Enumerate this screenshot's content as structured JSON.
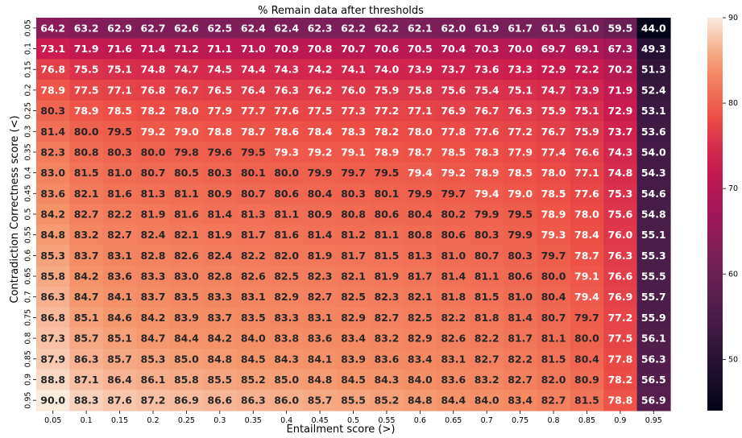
{
  "chart_data": {
    "type": "heatmap",
    "title": "% Remain data after thresholds",
    "xlabel": "Entailment score (>)",
    "ylabel": "Contradiction Correctness score (<)",
    "x_categories": [
      "0.05",
      "0.1",
      "0.15",
      "0.2",
      "0.25",
      "0.3",
      "0.35",
      "0.4",
      "0.45",
      "0.5",
      "0.55",
      "0.6",
      "0.65",
      "0.7",
      "0.75",
      "0.8",
      "0.85",
      "0.9",
      "0.95"
    ],
    "y_categories": [
      "0.05",
      "0.1",
      "0.15",
      "0.2",
      "0.25",
      "0.3",
      "0.35",
      "0.4",
      "0.45",
      "0.5",
      "0.55",
      "0.6",
      "0.65",
      "0.7",
      "0.75",
      "0.8",
      "0.85",
      "0.9",
      "0.95"
    ],
    "values": [
      [
        64.2,
        63.2,
        62.9,
        62.7,
        62.6,
        62.5,
        62.4,
        62.4,
        62.3,
        62.2,
        62.2,
        62.1,
        62.0,
        61.9,
        61.7,
        61.5,
        61.0,
        59.5,
        44.0
      ],
      [
        73.1,
        71.9,
        71.6,
        71.4,
        71.2,
        71.1,
        71.0,
        70.9,
        70.8,
        70.7,
        70.6,
        70.5,
        70.4,
        70.3,
        70.0,
        69.7,
        69.1,
        67.3,
        49.3
      ],
      [
        76.8,
        75.5,
        75.1,
        74.8,
        74.7,
        74.5,
        74.4,
        74.3,
        74.2,
        74.1,
        74.0,
        73.9,
        73.7,
        73.6,
        73.3,
        72.9,
        72.2,
        70.2,
        51.3
      ],
      [
        78.9,
        77.5,
        77.1,
        76.8,
        76.7,
        76.5,
        76.4,
        76.3,
        76.2,
        76.0,
        75.9,
        75.8,
        75.6,
        75.4,
        75.1,
        74.7,
        73.9,
        71.9,
        52.4
      ],
      [
        80.3,
        78.9,
        78.5,
        78.2,
        78.0,
        77.9,
        77.7,
        77.6,
        77.5,
        77.3,
        77.2,
        77.1,
        76.9,
        76.7,
        76.3,
        75.9,
        75.1,
        72.9,
        53.1
      ],
      [
        81.4,
        80.0,
        79.5,
        79.2,
        79.0,
        78.8,
        78.7,
        78.6,
        78.4,
        78.3,
        78.2,
        78.0,
        77.8,
        77.6,
        77.2,
        76.7,
        75.9,
        73.7,
        53.6
      ],
      [
        82.3,
        80.8,
        80.3,
        80.0,
        79.8,
        79.6,
        79.5,
        79.3,
        79.2,
        79.1,
        78.9,
        78.7,
        78.5,
        78.3,
        77.9,
        77.4,
        76.6,
        74.3,
        54.0
      ],
      [
        83.0,
        81.5,
        81.0,
        80.7,
        80.5,
        80.3,
        80.1,
        80.0,
        79.9,
        79.7,
        79.5,
        79.4,
        79.2,
        78.9,
        78.5,
        78.0,
        77.1,
        74.8,
        54.3
      ],
      [
        83.6,
        82.1,
        81.6,
        81.3,
        81.1,
        80.9,
        80.7,
        80.6,
        80.4,
        80.3,
        80.1,
        79.9,
        79.7,
        79.4,
        79.0,
        78.5,
        77.6,
        75.3,
        54.6
      ],
      [
        84.2,
        82.7,
        82.2,
        81.9,
        81.6,
        81.4,
        81.3,
        81.1,
        80.9,
        80.8,
        80.6,
        80.4,
        80.2,
        79.9,
        79.5,
        78.9,
        78.0,
        75.6,
        54.8
      ],
      [
        84.8,
        83.2,
        82.7,
        82.4,
        82.1,
        81.9,
        81.7,
        81.6,
        81.4,
        81.2,
        81.1,
        80.8,
        80.6,
        80.3,
        79.9,
        79.3,
        78.4,
        76.0,
        55.1
      ],
      [
        85.3,
        83.7,
        83.1,
        82.8,
        82.6,
        82.4,
        82.2,
        82.0,
        81.9,
        81.7,
        81.5,
        81.3,
        81.0,
        80.7,
        80.3,
        79.7,
        78.7,
        76.3,
        55.3
      ],
      [
        85.8,
        84.2,
        83.6,
        83.3,
        83.0,
        82.8,
        82.6,
        82.5,
        82.3,
        82.1,
        81.9,
        81.7,
        81.4,
        81.1,
        80.6,
        80.0,
        79.1,
        76.6,
        55.5
      ],
      [
        86.3,
        84.7,
        84.1,
        83.7,
        83.5,
        83.3,
        83.1,
        82.9,
        82.7,
        82.5,
        82.3,
        82.1,
        81.8,
        81.5,
        81.0,
        80.4,
        79.4,
        76.9,
        55.7
      ],
      [
        86.8,
        85.1,
        84.6,
        84.2,
        83.9,
        83.7,
        83.5,
        83.3,
        83.1,
        82.9,
        82.7,
        82.5,
        82.2,
        81.8,
        81.4,
        80.7,
        79.7,
        77.2,
        55.9
      ],
      [
        87.3,
        85.7,
        85.1,
        84.7,
        84.4,
        84.2,
        84.0,
        83.8,
        83.6,
        83.4,
        83.2,
        82.9,
        82.6,
        82.2,
        81.7,
        81.1,
        80.0,
        77.5,
        56.1
      ],
      [
        87.9,
        86.3,
        85.7,
        85.3,
        85.0,
        84.8,
        84.5,
        84.3,
        84.1,
        83.9,
        83.6,
        83.4,
        83.1,
        82.7,
        82.2,
        81.5,
        80.4,
        77.8,
        56.3
      ],
      [
        88.8,
        87.1,
        86.4,
        86.1,
        85.8,
        85.5,
        85.2,
        85.0,
        84.8,
        84.5,
        84.3,
        84.0,
        83.6,
        83.2,
        82.7,
        82.0,
        80.9,
        78.2,
        56.5
      ],
      [
        90.0,
        88.3,
        87.6,
        87.2,
        86.9,
        86.6,
        86.3,
        86.0,
        85.7,
        85.5,
        85.2,
        84.8,
        84.4,
        84.0,
        83.4,
        82.7,
        81.5,
        78.8,
        56.9
      ]
    ],
    "colorscale": "rocket",
    "vmin": 44.0,
    "vmax": 90.0,
    "colorbar_ticks": [
      "50",
      "60",
      "70",
      "80",
      "90"
    ],
    "text_threshold": 79.5
  }
}
